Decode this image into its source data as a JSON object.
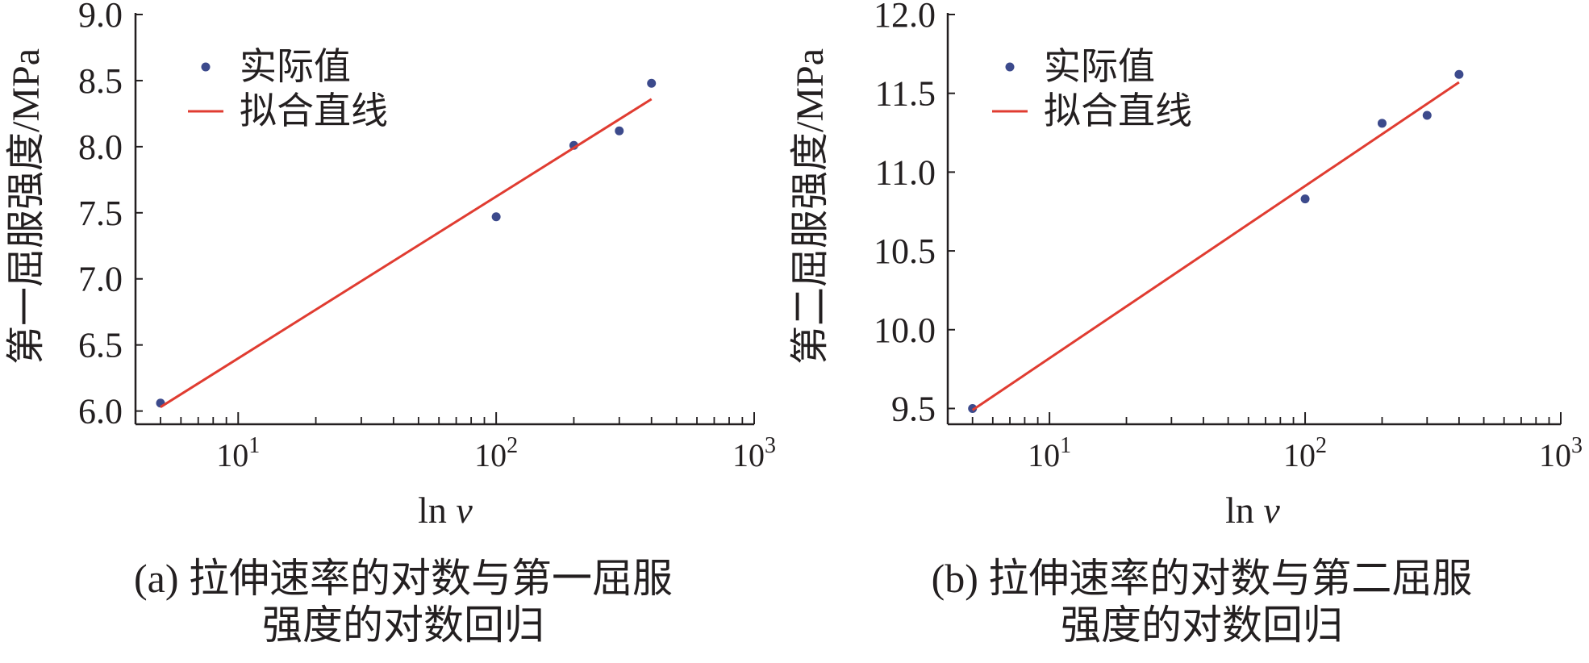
{
  "chart_data": [
    {
      "type": "scatter",
      "x_scale": "log",
      "xlabel": "ln v",
      "ylabel": "第一屈服强度/MPa",
      "xlim": [
        4,
        1000
      ],
      "ylim": [
        5.9,
        9.0
      ],
      "x_tick_labels": [
        "10",
        "10",
        "10"
      ],
      "x_tick_exponents": [
        "1",
        "2",
        "3"
      ],
      "x_ticks": [
        10,
        100,
        1000
      ],
      "y_ticks": [
        6.0,
        6.5,
        7.0,
        7.5,
        8.0,
        8.5,
        9.0
      ],
      "y_tick_labels": [
        "6.0",
        "6.5",
        "7.0",
        "7.5",
        "8.0",
        "8.5",
        "9.0"
      ],
      "legend_position": "top-left",
      "series": [
        {
          "name": "实际值",
          "kind": "scatter",
          "color": "#3c4a8c",
          "x": [
            5,
            100,
            200,
            300,
            400
          ],
          "y": [
            6.06,
            7.47,
            8.01,
            8.12,
            8.48
          ]
        },
        {
          "name": "拟合直线",
          "kind": "line",
          "color": "#e03c31",
          "x": [
            5,
            400
          ],
          "y": [
            6.03,
            8.36
          ]
        }
      ],
      "caption_lines": [
        "(a) 拉伸速率的对数与第一屈服",
        "强度的对数回归"
      ]
    },
    {
      "type": "scatter",
      "x_scale": "log",
      "xlabel": "ln v",
      "ylabel": "第二屈服强度/MPa",
      "xlim": [
        4,
        1000
      ],
      "ylim": [
        9.4,
        12.0
      ],
      "x_tick_labels": [
        "10",
        "10",
        "10"
      ],
      "x_tick_exponents": [
        "1",
        "2",
        "3"
      ],
      "x_ticks": [
        10,
        100,
        1000
      ],
      "y_ticks": [
        9.5,
        10.0,
        10.5,
        11.0,
        11.5,
        12.0
      ],
      "y_tick_labels": [
        "9.5",
        "10.0",
        "10.5",
        "11.0",
        "11.5",
        "12.0"
      ],
      "legend_position": "top-left",
      "series": [
        {
          "name": "实际值",
          "kind": "scatter",
          "color": "#3c4a8c",
          "x": [
            5,
            100,
            200,
            300,
            400
          ],
          "y": [
            9.5,
            10.83,
            11.31,
            11.36,
            11.62
          ]
        },
        {
          "name": "拟合直线",
          "kind": "line",
          "color": "#e03c31",
          "x": [
            5,
            400
          ],
          "y": [
            9.49,
            11.57
          ]
        }
      ],
      "caption_lines": [
        "(b) 拉伸速率的对数与第二屈服",
        "强度的对数回归"
      ]
    }
  ]
}
